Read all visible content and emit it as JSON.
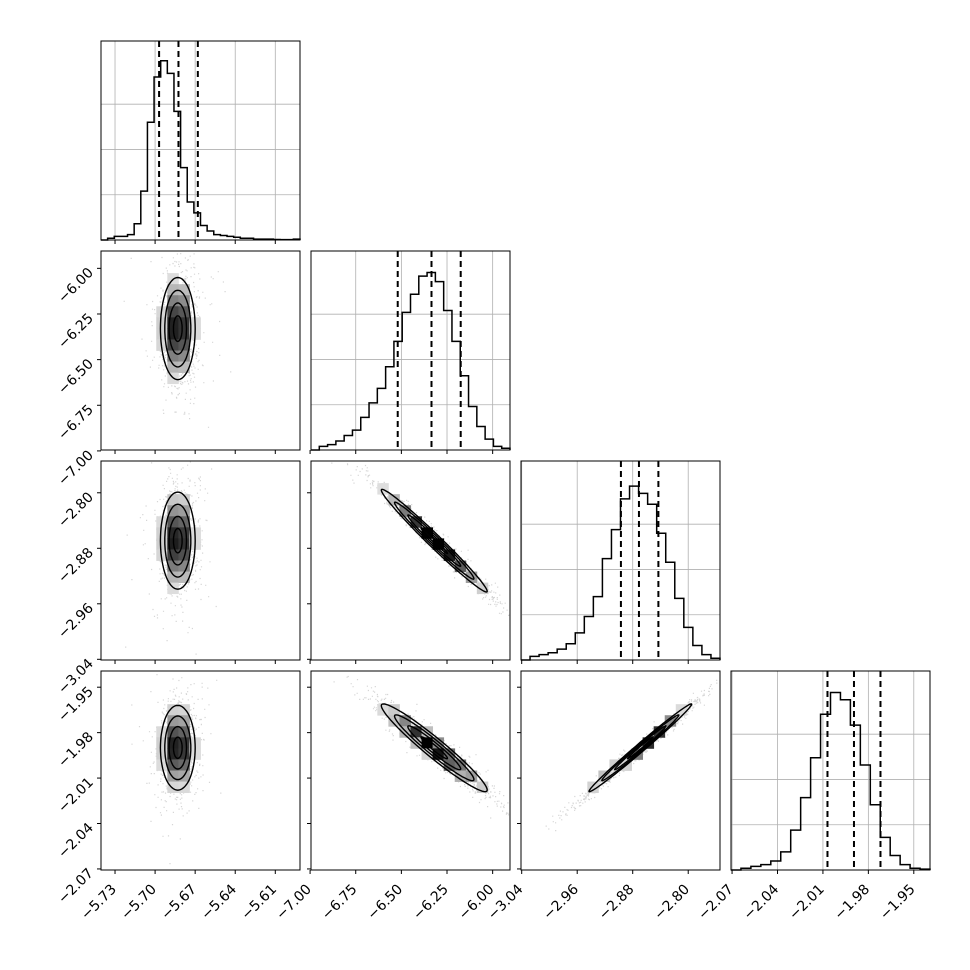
{
  "chart_data": {
    "type": "corner",
    "parameters": 4,
    "quantiles": [
      0.16,
      0.5,
      0.84
    ],
    "grid": true,
    "axes": [
      {
        "index": 0,
        "range": [
          -5.7405,
          -5.5915
        ],
        "ticks": [
          -5.73,
          -5.7,
          -5.67,
          -5.64,
          -5.61
        ],
        "tick_labels": [
          "−5.73",
          "−5.70",
          "−5.67",
          "−5.64",
          "−5.61"
        ],
        "quantile_values": [
          -5.697,
          -5.6825,
          -5.668
        ],
        "histogram": [
          0,
          0.01,
          0.02,
          0.02,
          0.03,
          0.09,
          0.27,
          0.65,
          0.9,
          0.99,
          0.92,
          0.71,
          0.4,
          0.21,
          0.15,
          0.08,
          0.05,
          0.03,
          0.025,
          0.02,
          0.015,
          0.01,
          0.01,
          0.005,
          0.005,
          0.005,
          0.003,
          0.002,
          0.002,
          0.005
        ]
      },
      {
        "index": 1,
        "range": [
          -6.995,
          -5.905
        ],
        "ticks": [
          -7.0,
          -6.75,
          -6.5,
          -6.25,
          -6.0
        ],
        "tick_labels": [
          "−7.00",
          "−6.75",
          "−6.50",
          "−6.25",
          "−6.00"
        ],
        "quantile_values": [
          -6.52,
          -6.335,
          -6.175
        ],
        "histogram": [
          0,
          0.02,
          0.03,
          0.05,
          0.08,
          0.11,
          0.18,
          0.26,
          0.34,
          0.46,
          0.6,
          0.76,
          0.86,
          0.96,
          0.98,
          0.93,
          0.77,
          0.6,
          0.41,
          0.24,
          0.13,
          0.06,
          0.02,
          0.01
        ]
      },
      {
        "index": 2,
        "range": [
          -3.041,
          -2.7542
        ],
        "ticks": [
          -3.04,
          -2.96,
          -2.88,
          -2.8
        ],
        "tick_labels": [
          "−3.04",
          "−2.96",
          "−2.88",
          "−2.80"
        ],
        "quantile_values": [
          -2.897,
          -2.871,
          -2.843
        ],
        "histogram": [
          0,
          0.02,
          0.03,
          0.04,
          0.06,
          0.09,
          0.15,
          0.24,
          0.35,
          0.56,
          0.72,
          0.89,
          0.96,
          0.92,
          0.86,
          0.7,
          0.54,
          0.34,
          0.18,
          0.08,
          0.03,
          0.01
        ]
      },
      {
        "index": 3,
        "range": [
          -2.0707,
          -1.9393
        ],
        "ticks": [
          -2.07,
          -2.04,
          -2.01,
          -1.98,
          -1.95
        ],
        "tick_labels": [
          "−2.07",
          "−2.04",
          "−2.01",
          "−1.98",
          "−1.95"
        ],
        "quantile_values": [
          -2.007,
          -1.9895,
          -1.972
        ],
        "histogram": [
          0,
          0.01,
          0.02,
          0.03,
          0.05,
          0.1,
          0.22,
          0.4,
          0.62,
          0.86,
          0.98,
          0.94,
          0.8,
          0.58,
          0.36,
          0.18,
          0.08,
          0.03,
          0.01,
          0.005
        ]
      }
    ],
    "pairs": [
      {
        "x": 0,
        "y": 1,
        "center": [
          -5.683,
          -6.33
        ],
        "sigma": [
          0.0065,
          0.14
        ],
        "rho": 0.0
      },
      {
        "x": 0,
        "y": 2,
        "center": [
          -5.683,
          -2.869
        ],
        "sigma": [
          0.0065,
          0.035
        ],
        "rho": 0.0
      },
      {
        "x": 1,
        "y": 2,
        "center": [
          -6.32,
          -2.869
        ],
        "sigma": [
          0.145,
          0.037
        ],
        "rho": -0.985
      },
      {
        "x": 0,
        "y": 3,
        "center": [
          -5.683,
          -1.99
        ],
        "sigma": [
          0.0065,
          0.014
        ],
        "rho": 0.0
      },
      {
        "x": 1,
        "y": 3,
        "center": [
          -6.32,
          -1.99
        ],
        "sigma": [
          0.145,
          0.0145
        ],
        "rho": -0.96
      },
      {
        "x": 2,
        "y": 3,
        "center": [
          -2.869,
          -1.99
        ],
        "sigma": [
          0.037,
          0.0145
        ],
        "rho": 0.992
      }
    ]
  }
}
